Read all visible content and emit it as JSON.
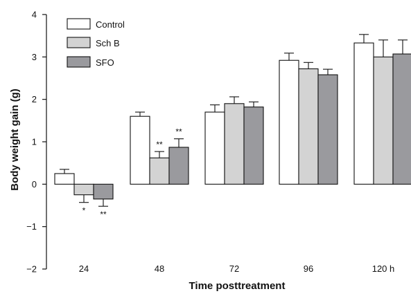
{
  "chart_data": {
    "type": "bar",
    "categories": [
      "24",
      "48",
      "72",
      "96",
      "120 h"
    ],
    "series": [
      {
        "name": "Control",
        "values": [
          0.25,
          1.6,
          1.7,
          2.92,
          3.33
        ],
        "errors": [
          0.1,
          0.1,
          0.17,
          0.17,
          0.2
        ],
        "color": "#ffffff"
      },
      {
        "name": "Sch B",
        "values": [
          -0.25,
          0.62,
          1.9,
          2.72,
          3.0
        ],
        "errors": [
          0.18,
          0.15,
          0.16,
          0.15,
          0.4
        ],
        "color": "#d3d3d3"
      },
      {
        "name": "SFO",
        "values": [
          -0.35,
          0.87,
          1.82,
          2.58,
          3.07
        ],
        "errors": [
          0.17,
          0.2,
          0.12,
          0.13,
          0.33
        ],
        "color": "#9a9a9e"
      }
    ],
    "significance": [
      {
        "category": "24",
        "series": "Sch B",
        "label": "*"
      },
      {
        "category": "24",
        "series": "SFO",
        "label": "**"
      },
      {
        "category": "48",
        "series": "Sch B",
        "label": "**"
      },
      {
        "category": "48",
        "series": "SFO",
        "label": "**"
      }
    ],
    "xlabel": "Time posttreatment",
    "ylabel": "Body weight gain (g)",
    "ylim": [
      -2,
      4
    ],
    "yticks": [
      -2,
      -1,
      0,
      1,
      2,
      3,
      4
    ],
    "legend_position": "top-left",
    "grid": false
  }
}
